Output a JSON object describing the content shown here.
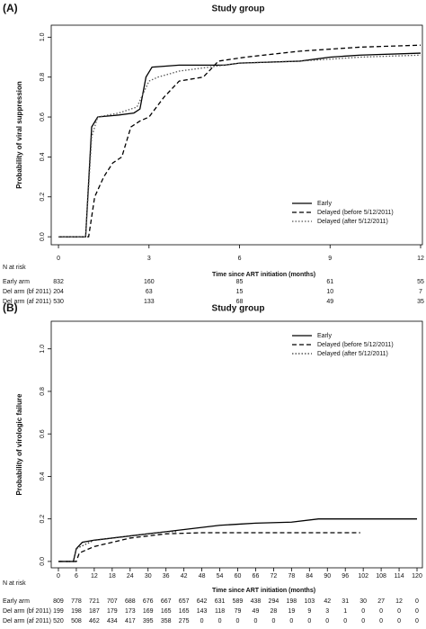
{
  "chart_data": [
    {
      "type": "line",
      "panel_label": "(A)",
      "title": "Study group",
      "x_label": "Time since ART initiation (months)",
      "y_label": "Probability of viral suppression",
      "xlim": [
        -0.24,
        12.06
      ],
      "xticks": [
        0,
        3,
        6,
        9,
        12
      ],
      "ylim": [
        -0.04,
        1.06
      ],
      "yticks": [
        {
          "value": 0,
          "label": "0.0"
        },
        0.2,
        0.4,
        0.6,
        0.8,
        {
          "value": 1,
          "label": "1.0"
        }
      ],
      "legend": "lower right",
      "series": [
        {
          "name": "Early",
          "color": "#000000",
          "linestyle": "solid",
          "x": [
            0,
            0.9,
            1.1,
            1.3,
            2,
            2.5,
            2.7,
            2.9,
            3.1,
            4,
            5.5,
            6,
            8,
            9,
            10,
            12
          ],
          "values": [
            0,
            0,
            0.55,
            0.6,
            0.61,
            0.62,
            0.64,
            0.8,
            0.85,
            0.86,
            0.86,
            0.87,
            0.88,
            0.9,
            0.91,
            0.92
          ]
        },
        {
          "name": "Delayed (before 5/12/2011)",
          "color": "#000000",
          "linestyle": "dashed",
          "x": [
            0,
            1,
            1.2,
            1.5,
            1.8,
            2.1,
            2.4,
            2.7,
            3,
            3.5,
            4,
            4.8,
            5.3,
            6.2,
            8,
            10,
            12
          ],
          "values": [
            0,
            0,
            0.2,
            0.3,
            0.37,
            0.4,
            0.55,
            0.58,
            0.6,
            0.7,
            0.78,
            0.8,
            0.88,
            0.9,
            0.93,
            0.95,
            0.96
          ]
        },
        {
          "name": "Delayed (after 5/12/2011)",
          "color": "#555555",
          "linestyle": "dotted",
          "x": [
            0,
            0.9,
            1.1,
            1.3,
            2,
            2.6,
            3,
            3.3,
            4,
            5,
            6,
            8,
            10,
            12
          ],
          "values": [
            0,
            0,
            0.5,
            0.6,
            0.62,
            0.65,
            0.78,
            0.8,
            0.83,
            0.85,
            0.87,
            0.88,
            0.9,
            0.91
          ]
        }
      ],
      "risk_table": {
        "title": "N at risk",
        "rows": [
          {
            "label": "Early arm",
            "values": [
              832,
              160,
              85,
              61,
              55
            ]
          },
          {
            "label": "Del arm (bf 2011)",
            "values": [
              204,
              63,
              15,
              10,
              7
            ]
          },
          {
            "label": "Del arm (af 2011)",
            "values": [
              530,
              133,
              68,
              49,
              35
            ]
          }
        ]
      }
    },
    {
      "type": "line",
      "panel_label": "(B)",
      "title": "Study group",
      "x_label": "Time since ART initiation (months)",
      "y_label": "Probability of virologic failure",
      "xlim": [
        -2.4,
        121.8
      ],
      "xticks": [
        0,
        6,
        12,
        18,
        24,
        30,
        36,
        42,
        48,
        54,
        60,
        66,
        72,
        78,
        84,
        90,
        96,
        102,
        108,
        114,
        120
      ],
      "ylim": [
        -0.03,
        1.13
      ],
      "yticks": [
        {
          "value": 0,
          "label": "0.0"
        },
        0.2,
        0.4,
        0.6,
        0.8,
        {
          "value": 1,
          "label": "1.0"
        }
      ],
      "legend": "upper right",
      "series": [
        {
          "name": "Early",
          "color": "#000000",
          "linestyle": "solid",
          "x": [
            0,
            5,
            6,
            8,
            12,
            18,
            24,
            30,
            36,
            42,
            48,
            54,
            60,
            66,
            78,
            87,
            120
          ],
          "values": [
            0,
            0,
            0.06,
            0.09,
            0.1,
            0.11,
            0.12,
            0.13,
            0.14,
            0.15,
            0.16,
            0.17,
            0.175,
            0.18,
            0.185,
            0.2,
            0.2
          ]
        },
        {
          "name": "Delayed (before 5/12/2011)",
          "color": "#000000",
          "linestyle": "dashed",
          "x": [
            0,
            6,
            7,
            12,
            18,
            24,
            30,
            36,
            48,
            101
          ],
          "values": [
            0,
            0,
            0.04,
            0.07,
            0.09,
            0.11,
            0.12,
            0.13,
            0.135,
            0.135
          ]
        },
        {
          "name": "Delayed (after 5/12/2011)",
          "color": "#333333",
          "linestyle": "dotted",
          "x": [
            0,
            5,
            6,
            12,
            24,
            30,
            36,
            40
          ],
          "values": [
            0,
            0,
            0.06,
            0.1,
            0.12,
            0.13,
            0.14,
            0.14
          ]
        }
      ],
      "risk_table": {
        "title": "N at risk",
        "rows": [
          {
            "label": "Early arm",
            "values": [
              809,
              778,
              721,
              707,
              688,
              676,
              667,
              657,
              642,
              631,
              589,
              438,
              294,
              198,
              103,
              42,
              31,
              30,
              27,
              12,
              0
            ]
          },
          {
            "label": "Del arm (bf 2011)",
            "values": [
              199,
              198,
              187,
              179,
              173,
              169,
              165,
              165,
              143,
              118,
              79,
              49,
              28,
              19,
              9,
              3,
              1,
              0,
              0,
              0,
              0
            ]
          },
          {
            "label": "Del arm (af 2011)",
            "values": [
              520,
              508,
              462,
              434,
              417,
              395,
              358,
              275,
              0,
              0,
              0,
              0,
              0,
              0,
              0,
              0,
              0,
              0,
              0,
              0,
              0
            ]
          }
        ]
      }
    }
  ]
}
